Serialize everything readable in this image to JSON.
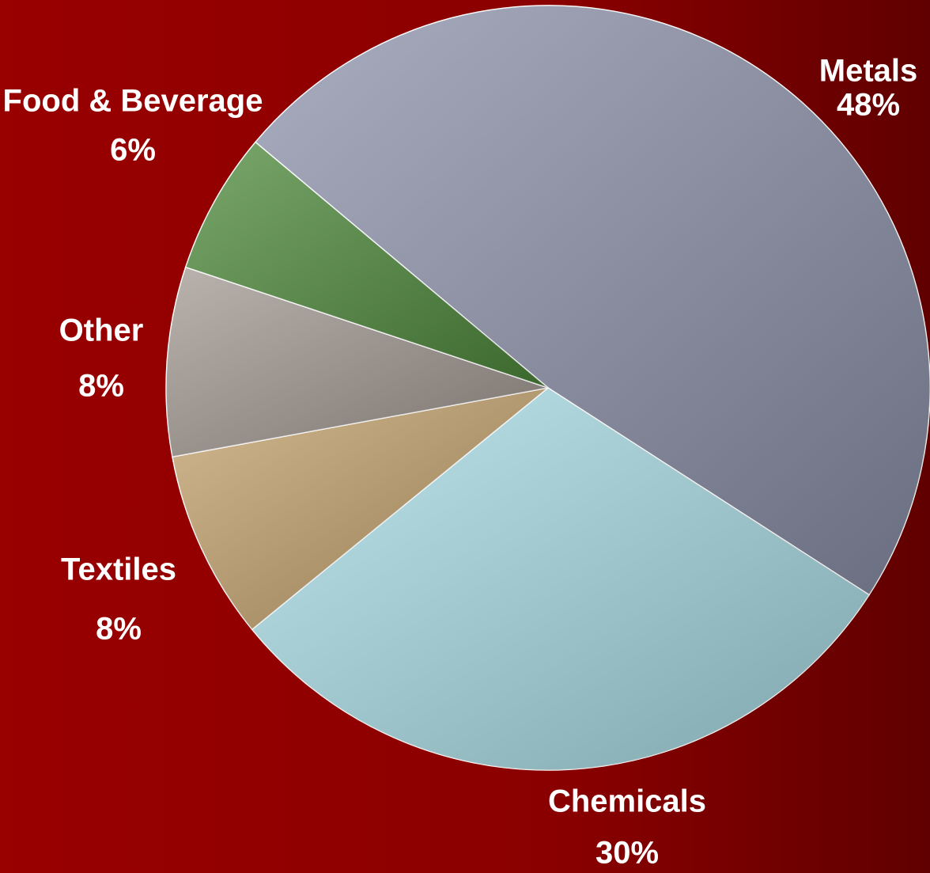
{
  "chart_data": {
    "type": "pie",
    "categories": [
      "Metals",
      "Chemicals",
      "Textiles",
      "Other",
      "Food & Beverage"
    ],
    "values": [
      48,
      30,
      8,
      8,
      6
    ],
    "value_labels": [
      "48%",
      "30%",
      "8%",
      "8%",
      "6%"
    ],
    "colors": [
      "#8c92aa",
      "#a9dde6",
      "#c4a26c",
      "#a39a92",
      "#4e8a3a"
    ]
  }
}
